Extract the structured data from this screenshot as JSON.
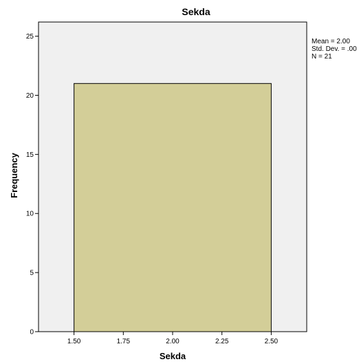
{
  "chart_data": {
    "type": "bar",
    "title": "Sekda",
    "xlabel": "Sekda",
    "ylabel": "Frequency",
    "bins": [
      {
        "x0": 1.5,
        "x1": 2.5,
        "value": 21
      }
    ],
    "xlim": [
      1.32,
      2.68
    ],
    "ylim": [
      0,
      26.2
    ],
    "x_ticks": [
      "1.50",
      "1.75",
      "2.00",
      "2.25",
      "2.50"
    ],
    "x_tick_values": [
      1.5,
      1.75,
      2.0,
      2.25,
      2.5
    ],
    "y_ticks": [
      "0",
      "5",
      "10",
      "15",
      "20",
      "25"
    ],
    "y_tick_values": [
      0,
      5,
      10,
      15,
      20,
      25
    ],
    "grid": false,
    "bar_color": "#d3ce98",
    "plot_background": "#f0f0f0",
    "stats": {
      "mean": "Mean = 2.00",
      "std": "Std. Dev. = .00",
      "n": "N = 21"
    }
  }
}
